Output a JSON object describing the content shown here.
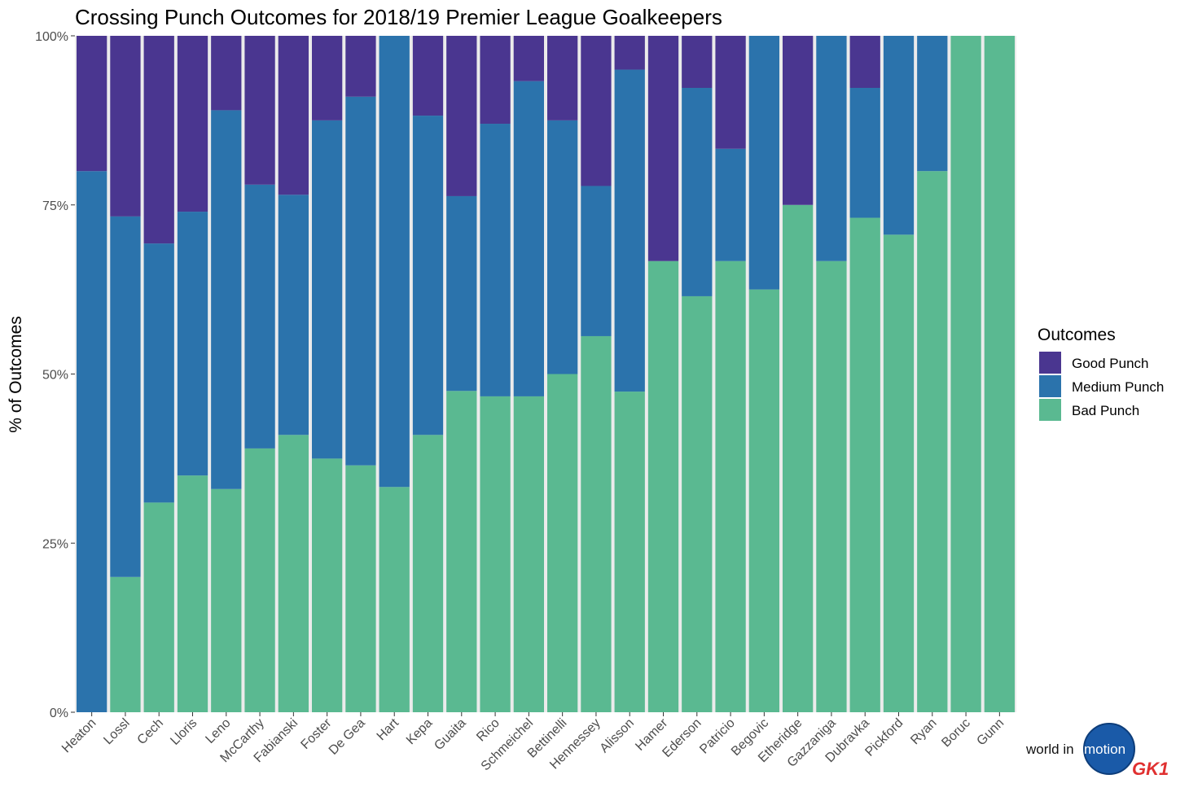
{
  "chart_data": {
    "type": "bar",
    "stacked": true,
    "title": "Crossing Punch Outcomes for 2018/19 Premier League Goalkeepers",
    "ylabel": "% of Outcomes",
    "xlabel": "",
    "ylim": [
      0,
      100
    ],
    "yticks": [
      "0%",
      "25%",
      "50%",
      "75%",
      "100%"
    ],
    "grid": true,
    "legend_title": "Outcomes",
    "legend_position": "right",
    "categories": [
      "Heaton",
      "Lossl",
      "Cech",
      "Lloris",
      "Leno",
      "McCarthy",
      "Fabianski",
      "Foster",
      "De Gea",
      "Hart",
      "Kepa",
      "Guaita",
      "Rico",
      "Schmeichel",
      "Bettinelli",
      "Hennessey",
      "Alisson",
      "Hamer",
      "Ederson",
      "Patricio",
      "Begovic",
      "Etheridge",
      "Gazzaniga",
      "Dubravka",
      "Pickford",
      "Ryan",
      "Boruc",
      "Gunn"
    ],
    "series": [
      {
        "name": "Bad Punch",
        "color": "#5ab991",
        "values": [
          0,
          20,
          31,
          35,
          33,
          39,
          41,
          37.5,
          36.5,
          33.3,
          41,
          47.5,
          46.7,
          46.7,
          50,
          55.6,
          47.4,
          66.7,
          61.5,
          66.7,
          62.5,
          75,
          66.7,
          73.1,
          70.6,
          80,
          100,
          100
        ]
      },
      {
        "name": "Medium Punch",
        "color": "#2b73ac",
        "values": [
          80,
          53.3,
          38.3,
          39,
          56,
          39,
          35.5,
          50,
          54.5,
          66.7,
          47.2,
          28.8,
          40.3,
          46.6,
          37.5,
          22.2,
          47.6,
          0,
          30.8,
          16.6,
          37.5,
          0,
          33.3,
          19.2,
          29.4,
          20,
          0,
          0
        ]
      },
      {
        "name": "Good Punch",
        "color": "#4a3690",
        "values": [
          20,
          26.7,
          30.7,
          26,
          11,
          22,
          23.5,
          12.5,
          9,
          0,
          11.8,
          23.7,
          13,
          6.7,
          12.5,
          22.2,
          5,
          33.3,
          7.7,
          16.7,
          0,
          25,
          0,
          7.7,
          0,
          0,
          0,
          0
        ]
      }
    ],
    "legend_order": [
      "Good Punch",
      "Medium Punch",
      "Bad Punch"
    ]
  },
  "branding": {
    "logo_text": "world in",
    "logo_inner": "motion",
    "logo_gk": "GK1",
    "gk_color": "#e03030"
  }
}
